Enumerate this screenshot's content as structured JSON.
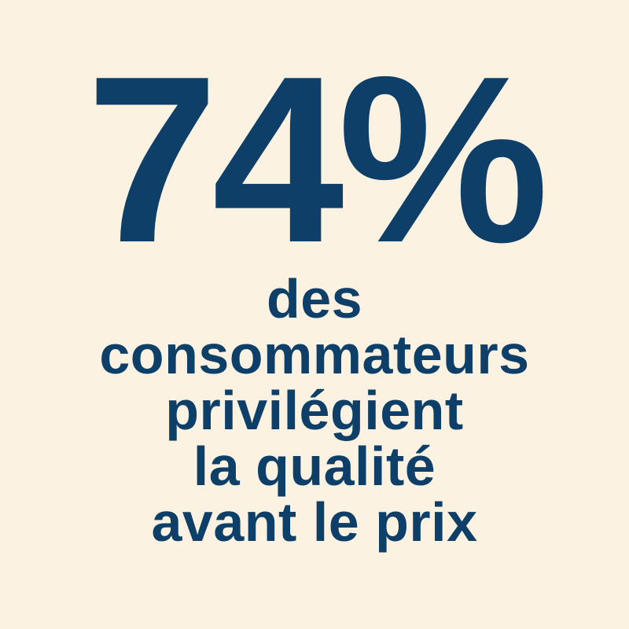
{
  "colors": {
    "background": "#FBF2E1",
    "text": "#0D3F68"
  },
  "statistic": "74%",
  "caption_lines": [
    "des",
    "consommateurs",
    "privilégient",
    "la qualité",
    "avant le prix"
  ]
}
